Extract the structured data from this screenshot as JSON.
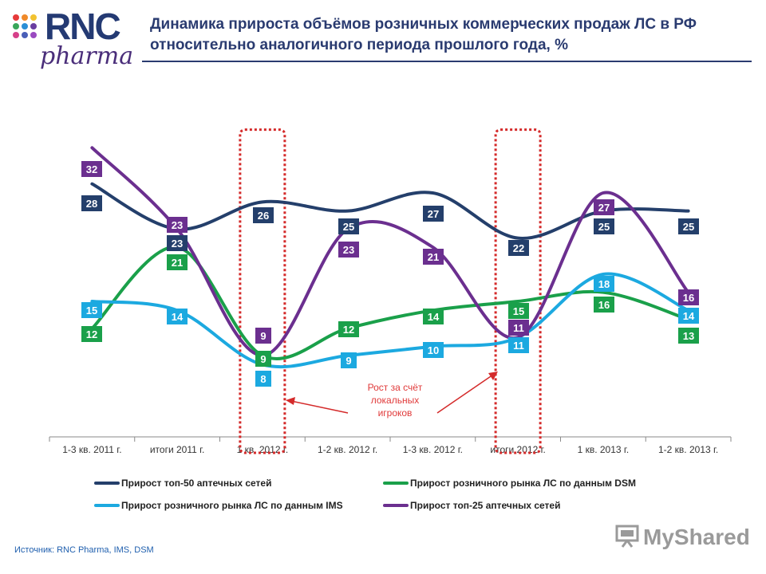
{
  "logo": {
    "brand": "RNC",
    "sub": "pharma"
  },
  "title": "Динамика прироста объёмов розничных коммерческих продаж ЛС в РФ относительно аналогичного периода прошлого года, %",
  "source": "Источник: RNC Pharma, IMS, DSM",
  "watermark": "MyShared",
  "annotation": "Рост за счёт локальных игроков",
  "chart_data": {
    "type": "line",
    "categories": [
      "1-3 кв. 2011 г.",
      "итоги 2011 г.",
      "1 кв. 2012 г.",
      "1-2 кв. 2012 г.",
      "1-3 кв. 2012 г.",
      "итоги 2012 г.",
      "1 кв. 2013 г.",
      "1-2 кв. 2013 г."
    ],
    "series": [
      {
        "name": "Прирост топ-50 аптечных сетей",
        "color": "#243f6b",
        "values": [
          28,
          23,
          26,
          25,
          27,
          22,
          25,
          25
        ]
      },
      {
        "name": "Прирост розничного рынка ЛС по данным DSM",
        "color": "#1aa04a",
        "values": [
          12,
          21,
          9,
          12,
          14,
          15,
          16,
          13
        ]
      },
      {
        "name": "Прирост розничного рынка ЛС по данным IMS",
        "color": "#1ca9e0",
        "values": [
          15,
          14,
          8,
          9,
          10,
          11,
          18,
          14
        ]
      },
      {
        "name": "Прирост топ-25 аптечных сетей",
        "color": "#6b2f8f",
        "values": [
          32,
          23,
          9,
          23,
          21,
          11,
          27,
          16
        ]
      }
    ],
    "ylim": [
      0,
      36
    ],
    "highlight_categories": [
      "1 кв. 2012 г.",
      "итоги 2012 г."
    ],
    "legend_position": "bottom"
  }
}
